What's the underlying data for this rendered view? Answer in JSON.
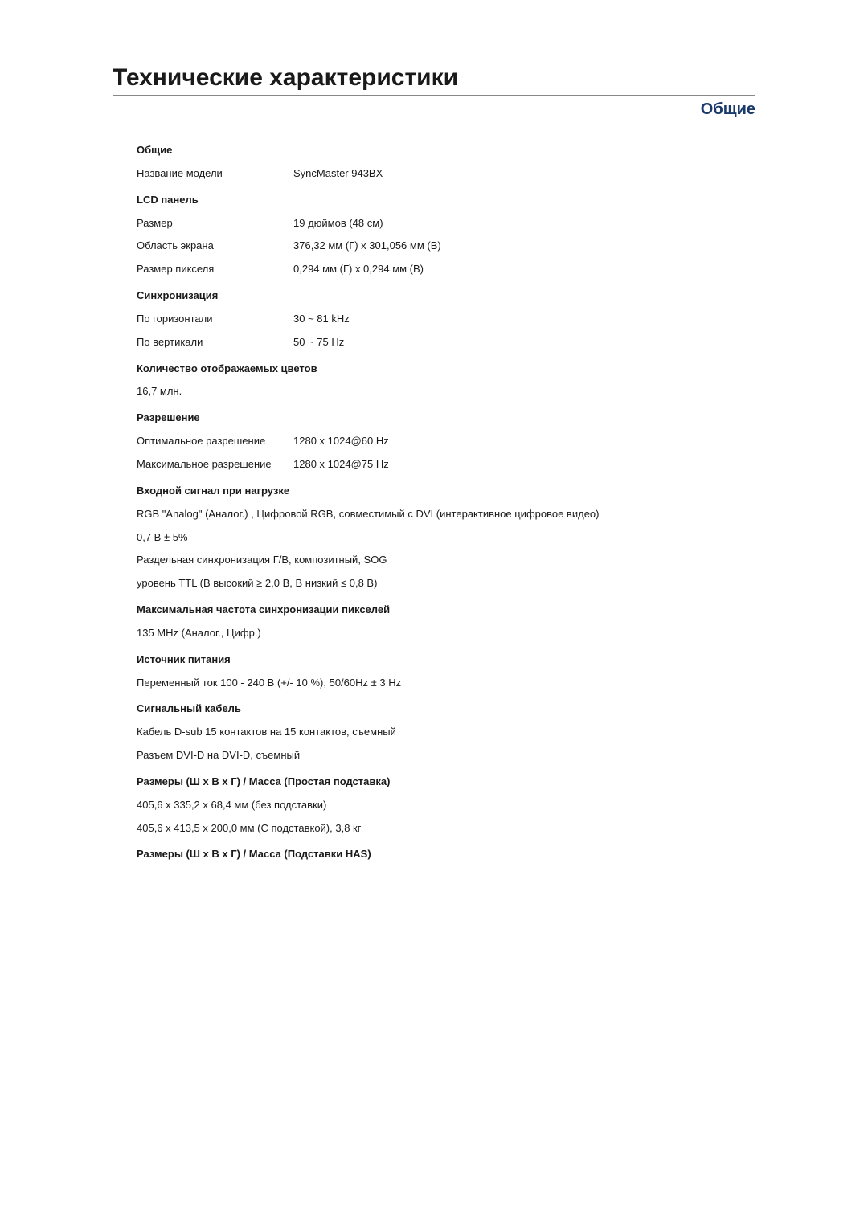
{
  "title": "Технические характеристики",
  "section_title": "Общие",
  "sections": {
    "general": {
      "header": "Общие",
      "model_label": "Название модели",
      "model_value": "SyncMaster 943BX"
    },
    "lcd": {
      "header": "LCD панель",
      "size_label": "Размер",
      "size_value": "19 дюймов (48 см)",
      "area_label": "Область экрана",
      "area_value": "376,32 мм (Г) x 301,056 мм (В)",
      "pixel_label": "Размер пикселя",
      "pixel_value": "0,294 мм (Г) x 0,294 мм (В)"
    },
    "sync": {
      "header": "Синхронизация",
      "horiz_label": "По горизонтали",
      "horiz_value": "30 ~ 81 kHz",
      "vert_label": "По вертикали",
      "vert_value": "50 ~ 75 Hz"
    },
    "colors": {
      "header": "Количество отображаемых цветов",
      "value": "16,7 млн."
    },
    "resolution": {
      "header": "Разрешение",
      "opt_label": "Оптимальное разрешение",
      "opt_value": "1280 x 1024@60 Hz",
      "max_label": "Максимальное разрешение",
      "max_value": "1280 x 1024@75 Hz"
    },
    "input_signal": {
      "header": "Входной сигнал при нагрузке",
      "line1": "RGB \"Analog\" (Аналог.) , Цифровой RGB, совместимый с DVI (интерактивное цифровое видео)",
      "line2": "0,7 B ± 5%",
      "line3": "Раздельная синхронизация Г/В, композитный, SOG",
      "line4": "уровень TTL (В высокий ≥ 2,0 В, В низкий ≤ 0,8 В)"
    },
    "pixel_clock": {
      "header": "Максимальная частота синхронизации пикселей",
      "value": "135 MHz (Аналог., Цифр.)"
    },
    "power": {
      "header": "Источник питания",
      "value": "Переменный ток 100 - 240 В (+/- 10 %), 50/60Hz ± 3 Hz"
    },
    "signal_cable": {
      "header": "Сигнальный кабель",
      "line1": "Кабель D-sub 15 контактов на 15 контактов, съемный",
      "line2": "Разъем DVI-D на DVI-D, съемный"
    },
    "dims_simple": {
      "header": "Размеры (Ш х В х Г) / Масса (Простая подставка)",
      "line1": "405,6 x 335,2 x 68,4 мм (без подставки)",
      "line2": "405,6 x 413,5 x 200,0 мм (С подставкой), 3,8 кг"
    },
    "dims_has": {
      "header": "Размеры (Ш x В x Г) / Масса (Подставки HAS)"
    }
  }
}
